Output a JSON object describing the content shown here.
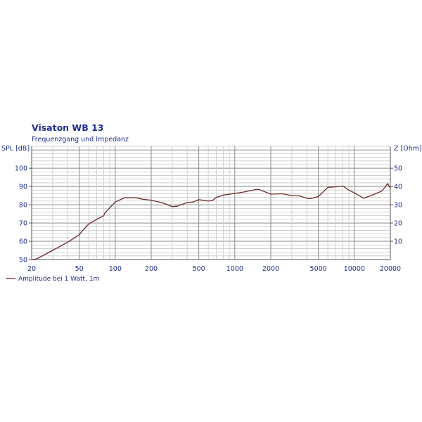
{
  "chart_data": {
    "type": "line",
    "title": "Visaton WB 13",
    "subtitle": "Frequenzgang und Impedanz",
    "ylabel": "SPL [dB]",
    "y2label": "Z [Ohm]",
    "xscale": "log",
    "xlim": [
      20,
      20000
    ],
    "ylim": [
      50,
      112
    ],
    "y2lim": [
      0,
      62
    ],
    "xticks": [
      20,
      50,
      100,
      200,
      500,
      1000,
      2000,
      5000,
      10000,
      20000
    ],
    "yticks": [
      50,
      60,
      70,
      80,
      90,
      100
    ],
    "y2ticks": [
      10,
      20,
      30,
      40,
      50
    ],
    "grid": true,
    "legend_position": "bottom-left",
    "series": [
      {
        "name": "Amplitude bei 1 Watt, 1m",
        "color": "#6b2a2a",
        "x": [
          20,
          22,
          30,
          40,
          50,
          52,
          60,
          70,
          80,
          82,
          100,
          120,
          150,
          170,
          200,
          250,
          300,
          330,
          400,
          450,
          500,
          600,
          650,
          700,
          800,
          1000,
          1200,
          1500,
          1600,
          2000,
          2500,
          3000,
          3500,
          4000,
          4300,
          5000,
          6000,
          7000,
          8000,
          9000,
          10000,
          12000,
          15000,
          17000,
          19000,
          20000
        ],
        "y": [
          50,
          50.3,
          55,
          59.5,
          63.5,
          65,
          69.5,
          72,
          74,
          75.5,
          81.5,
          83.8,
          83.8,
          83,
          82.5,
          81,
          79,
          79.2,
          81.2,
          81.5,
          82.8,
          82,
          82.3,
          84,
          85.3,
          86.2,
          87,
          88.3,
          88.3,
          85.8,
          86,
          85,
          84.8,
          83.5,
          83.3,
          84.5,
          89.5,
          89.8,
          90.3,
          88,
          86.5,
          83.5,
          86,
          87.5,
          91.5,
          89
        ]
      }
    ]
  }
}
